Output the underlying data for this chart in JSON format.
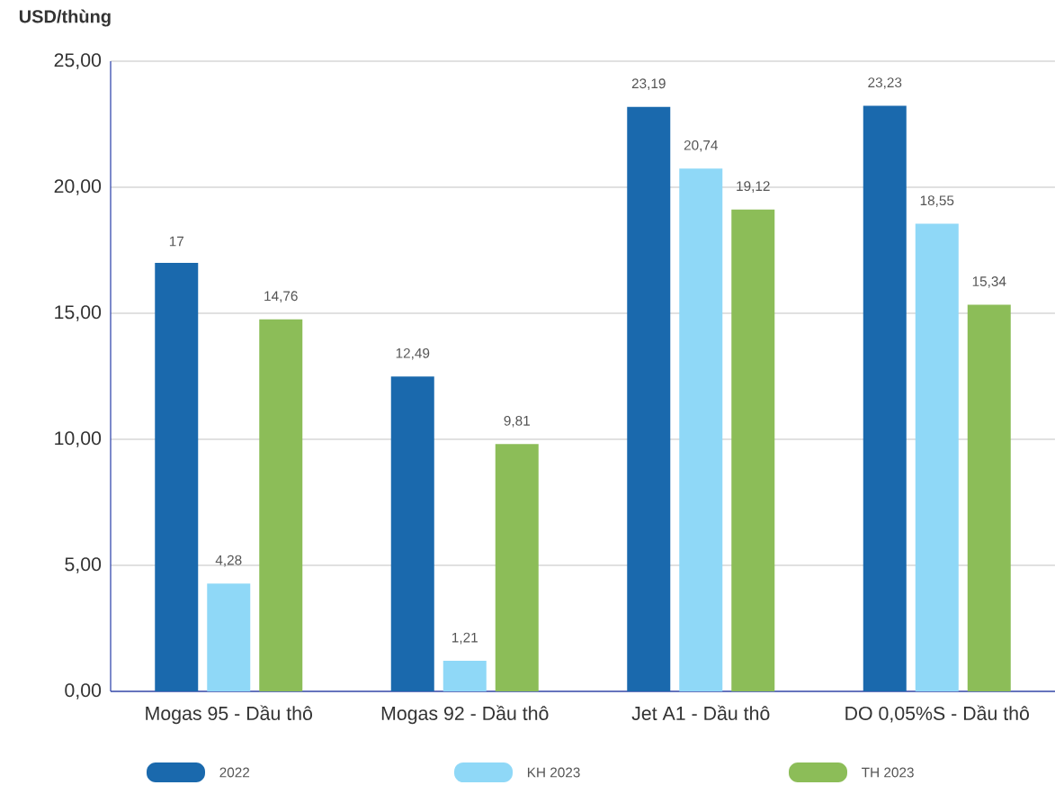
{
  "chart_data": {
    "type": "bar",
    "ylabel": "USD/thùng",
    "categories": [
      "Mogas 95 - Dầu thô",
      "Mogas 92 - Dầu thô",
      "Jet A1 - Dầu thô",
      "DO 0,05%S - Dầu thô"
    ],
    "series": [
      {
        "name": "2022",
        "color": "#1a69ad",
        "values": [
          17,
          12.49,
          23.19,
          23.23
        ],
        "value_labels": [
          "17",
          "12,49",
          "23,19",
          "23,23"
        ]
      },
      {
        "name": "KH 2023",
        "color": "#8fd8f7",
        "values": [
          4.28,
          1.21,
          20.74,
          18.55
        ],
        "value_labels": [
          "4,28",
          "1,21",
          "20,74",
          "18,55"
        ]
      },
      {
        "name": "TH 2023",
        "color": "#8cbd58",
        "values": [
          14.76,
          9.81,
          19.12,
          15.34
        ],
        "value_labels": [
          "14,76",
          "9,81",
          "19,12",
          "15,34"
        ]
      }
    ],
    "ylim": [
      0,
      25
    ],
    "yticks": [
      {
        "value": 0,
        "label": "0,00"
      },
      {
        "value": 5,
        "label": "5,00"
      },
      {
        "value": 10,
        "label": "10,00"
      },
      {
        "value": 15,
        "label": "15,00"
      },
      {
        "value": 20,
        "label": "20,00"
      },
      {
        "value": 25,
        "label": "25,00"
      }
    ],
    "grid": "y",
    "legend": "bottom"
  }
}
